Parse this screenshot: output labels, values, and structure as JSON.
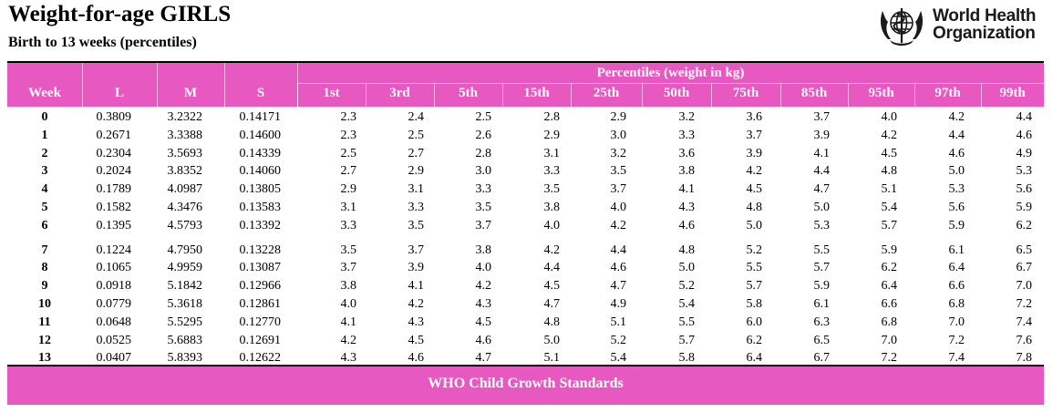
{
  "header": {
    "title": "Weight-for-age GIRLS",
    "subtitle": "Birth to 13 weeks (percentiles)"
  },
  "logo": {
    "org_line1": "World Health",
    "org_line2": "Organization",
    "icon": "who-emblem-icon"
  },
  "colors": {
    "band": "#e759c0",
    "rule": "#000000"
  },
  "table": {
    "group_header": "Percentiles (weight in kg)",
    "columns": [
      "Week",
      "L",
      "M",
      "S",
      "1st",
      "3rd",
      "5th",
      "15th",
      "25th",
      "50th",
      "75th",
      "85th",
      "95th",
      "97th",
      "99th"
    ],
    "rows": [
      [
        "0",
        "0.3809",
        "3.2322",
        "0.14171",
        "2.3",
        "2.4",
        "2.5",
        "2.8",
        "2.9",
        "3.2",
        "3.6",
        "3.7",
        "4.0",
        "4.2",
        "4.4"
      ],
      [
        "1",
        "0.2671",
        "3.3388",
        "0.14600",
        "2.3",
        "2.5",
        "2.6",
        "2.9",
        "3.0",
        "3.3",
        "3.7",
        "3.9",
        "4.2",
        "4.4",
        "4.6"
      ],
      [
        "2",
        "0.2304",
        "3.5693",
        "0.14339",
        "2.5",
        "2.7",
        "2.8",
        "3.1",
        "3.2",
        "3.6",
        "3.9",
        "4.1",
        "4.5",
        "4.6",
        "4.9"
      ],
      [
        "3",
        "0.2024",
        "3.8352",
        "0.14060",
        "2.7",
        "2.9",
        "3.0",
        "3.3",
        "3.5",
        "3.8",
        "4.2",
        "4.4",
        "4.8",
        "5.0",
        "5.3"
      ],
      [
        "4",
        "0.1789",
        "4.0987",
        "0.13805",
        "2.9",
        "3.1",
        "3.3",
        "3.5",
        "3.7",
        "4.1",
        "4.5",
        "4.7",
        "5.1",
        "5.3",
        "5.6"
      ],
      [
        "5",
        "0.1582",
        "4.3476",
        "0.13583",
        "3.1",
        "3.3",
        "3.5",
        "3.8",
        "4.0",
        "4.3",
        "4.8",
        "5.0",
        "5.4",
        "5.6",
        "5.9"
      ],
      [
        "6",
        "0.1395",
        "4.5793",
        "0.13392",
        "3.3",
        "3.5",
        "3.7",
        "4.0",
        "4.2",
        "4.6",
        "5.0",
        "5.3",
        "5.7",
        "5.9",
        "6.2"
      ],
      [
        "7",
        "0.1224",
        "4.7950",
        "0.13228",
        "3.5",
        "3.7",
        "3.8",
        "4.2",
        "4.4",
        "4.8",
        "5.2",
        "5.5",
        "5.9",
        "6.1",
        "6.5"
      ],
      [
        "8",
        "0.1065",
        "4.9959",
        "0.13087",
        "3.7",
        "3.9",
        "4.0",
        "4.4",
        "4.6",
        "5.0",
        "5.5",
        "5.7",
        "6.2",
        "6.4",
        "6.7"
      ],
      [
        "9",
        "0.0918",
        "5.1842",
        "0.12966",
        "3.8",
        "4.1",
        "4.2",
        "4.5",
        "4.7",
        "5.2",
        "5.7",
        "5.9",
        "6.4",
        "6.6",
        "7.0"
      ],
      [
        "10",
        "0.0779",
        "5.3618",
        "0.12861",
        "4.0",
        "4.2",
        "4.3",
        "4.7",
        "4.9",
        "5.4",
        "5.8",
        "6.1",
        "6.6",
        "6.8",
        "7.2"
      ],
      [
        "11",
        "0.0648",
        "5.5295",
        "0.12770",
        "4.1",
        "4.3",
        "4.5",
        "4.8",
        "5.1",
        "5.5",
        "6.0",
        "6.3",
        "6.8",
        "7.0",
        "7.4"
      ],
      [
        "12",
        "0.0525",
        "5.6883",
        "0.12691",
        "4.2",
        "4.5",
        "4.6",
        "5.0",
        "5.2",
        "5.7",
        "6.2",
        "6.5",
        "7.0",
        "7.2",
        "7.6"
      ],
      [
        "13",
        "0.0407",
        "5.8393",
        "0.12622",
        "4.3",
        "4.6",
        "4.7",
        "5.1",
        "5.4",
        "5.8",
        "6.4",
        "6.7",
        "7.2",
        "7.4",
        "7.8"
      ]
    ]
  },
  "footer": {
    "text": "WHO Child Growth Standards"
  }
}
